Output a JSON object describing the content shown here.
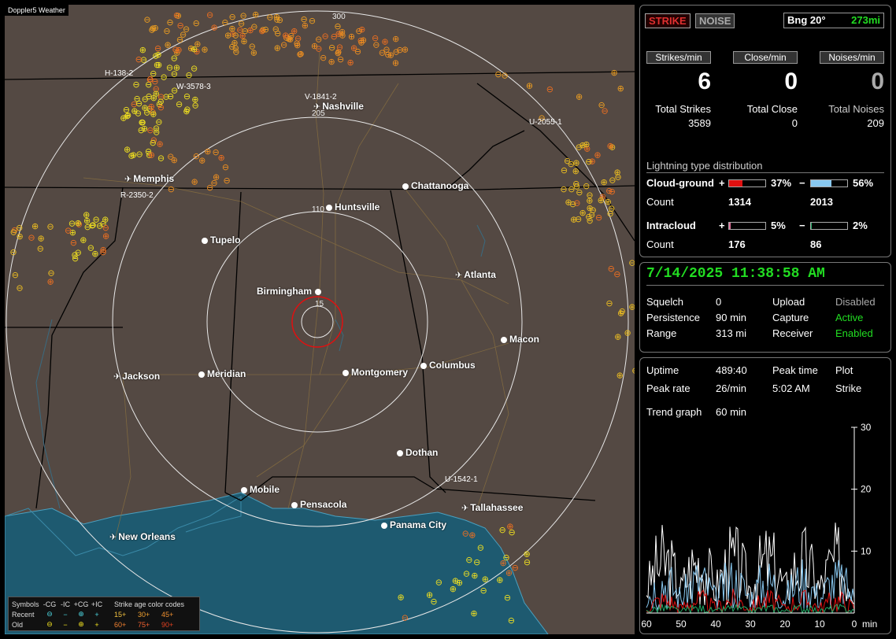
{
  "app": {
    "title": "Doppler5 Weather"
  },
  "map": {
    "ring_labels": [
      "300",
      "205",
      "110",
      "15"
    ],
    "cities": [
      {
        "name": "Nashville",
        "type": "airport"
      },
      {
        "name": "Memphis",
        "type": "airport"
      },
      {
        "name": "Chattanooga",
        "type": "city"
      },
      {
        "name": "Huntsville",
        "type": "city"
      },
      {
        "name": "Tupelo",
        "type": "city"
      },
      {
        "name": "Atlanta",
        "type": "airport"
      },
      {
        "name": "Birmingham",
        "type": "city"
      },
      {
        "name": "Macon",
        "type": "city"
      },
      {
        "name": "Jackson",
        "type": "airport"
      },
      {
        "name": "Meridian",
        "type": "city"
      },
      {
        "name": "Montgomery",
        "type": "city"
      },
      {
        "name": "Columbus",
        "type": "city"
      },
      {
        "name": "Dothan",
        "type": "city"
      },
      {
        "name": "Mobile",
        "type": "city"
      },
      {
        "name": "Pensacola",
        "type": "city"
      },
      {
        "name": "Tallahassee",
        "type": "airport"
      },
      {
        "name": "Panama City",
        "type": "city"
      },
      {
        "name": "New Orleans",
        "type": "airport"
      }
    ],
    "tracks": [
      "H-138-2",
      "W-3578-3",
      "V-1841-2",
      "U-2055-1",
      "R-2350-2",
      "U-1542-1"
    ],
    "legend": {
      "symbols_label": "Symbols",
      "cols": [
        "-CG",
        "-IC",
        "+CG",
        "+IC"
      ],
      "age_label": "Strike age color codes",
      "recent_label": "Recent",
      "old_label": "Old",
      "recent_ages": [
        "15+",
        "30+",
        "45+"
      ],
      "old_ages": [
        "60+",
        "75+",
        "90+"
      ]
    }
  },
  "panel1": {
    "strike_btn": "STRIKE",
    "noise_btn": "NOISE",
    "bearing": "Bng 20°",
    "distance": "273mi",
    "headers": [
      "Strikes/min",
      "Close/min",
      "Noises/min"
    ],
    "big": [
      "6",
      "0",
      "0"
    ],
    "totals_labels": [
      "Total Strikes",
      "Total Close",
      "Total Noises"
    ],
    "totals": [
      "3589",
      "0",
      "209"
    ],
    "dist_title": "Lightning type distribution",
    "cg_label": "Cloud-ground",
    "ic_label": "Intracloud",
    "count_label": "Count",
    "plus": "+",
    "minus": "−",
    "cg_pos_pct": "37%",
    "cg_neg_pct": "56%",
    "cg_pos_frac": 0.37,
    "cg_neg_frac": 0.56,
    "cg_pos_count": "1314",
    "cg_neg_count": "2013",
    "ic_pos_pct": "5%",
    "ic_neg_pct": "2%",
    "ic_pos_frac": 0.05,
    "ic_neg_frac": 0.02,
    "ic_pos_count": "176",
    "ic_neg_count": "86"
  },
  "panel2": {
    "datetime": "7/14/2025 11:38:58 AM",
    "squelch_label": "Squelch",
    "squelch": "0",
    "persistence_label": "Persistence",
    "persistence": "90 min",
    "range_label": "Range",
    "range": "313 mi",
    "upload_label": "Upload",
    "upload": "Disabled",
    "capture_label": "Capture",
    "capture": "Active",
    "receiver_label": "Receiver",
    "receiver": "Enabled"
  },
  "panel3": {
    "uptime_label": "Uptime",
    "uptime": "489:40",
    "peaktime_label": "Peak time",
    "plot_label": "Plot",
    "peakrate_label": "Peak rate",
    "peakrate": "26/min",
    "peaktime": "5:02 AM",
    "plot": "Strike",
    "trend_label": "Trend graph",
    "trend": "60 min",
    "y_ticks": [
      "30",
      "20",
      "10"
    ],
    "x_ticks": [
      "60",
      "50",
      "40",
      "30",
      "20",
      "10",
      "0"
    ],
    "x_unit": "min"
  },
  "colors": {
    "green": "#22dd22",
    "red": "#cc2222",
    "blue": "#88c8f0",
    "pink": "#e0709a",
    "teal": "#22aa66"
  }
}
